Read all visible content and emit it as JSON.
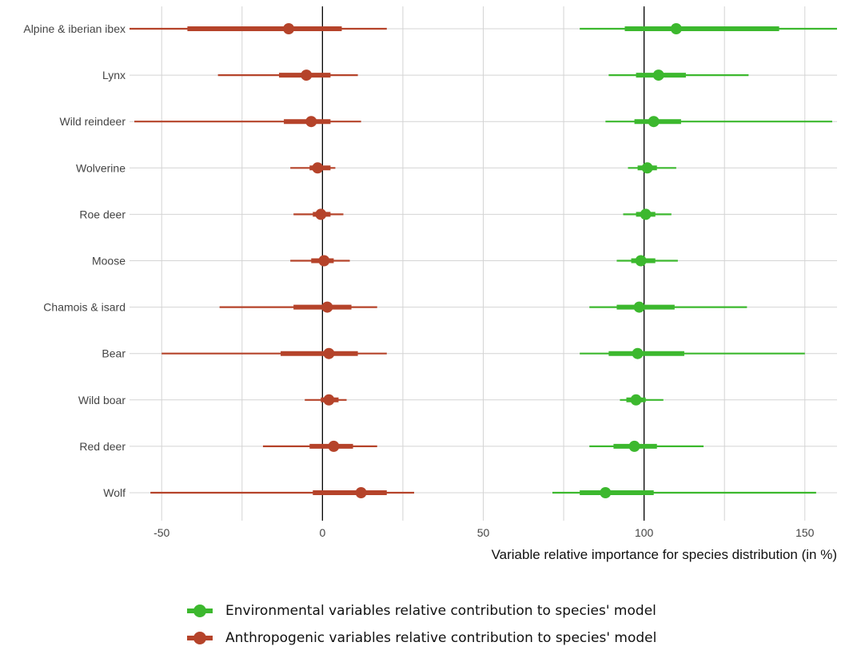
{
  "colors": {
    "environmental": "#3cb82e",
    "anthropogenic": "#b5432a",
    "grid": "#d4d4d4",
    "zero_line": "#000000",
    "reference_line": "#000000"
  },
  "chart_data": {
    "type": "forest-interval",
    "xlabel": "Variable relative importance for species distribution (in %)",
    "xlim": [
      -60,
      160
    ],
    "x_ticks": [
      -50,
      0,
      50,
      100,
      150
    ],
    "x_tick_labels": [
      "-50",
      "0",
      "50",
      "100",
      "150"
    ],
    "x_minor_gridlines": [
      -25,
      25,
      75,
      125
    ],
    "vertical_reference_lines": [
      0,
      100
    ],
    "grid": true,
    "legend_placement": "bottom",
    "categories": [
      "Alpine & iberian ibex",
      "Lynx",
      "Wild reindeer",
      "Wolverine",
      "Roe deer",
      "Moose",
      "Chamois & isard",
      "Bear",
      "Wild boar",
      "Red deer",
      "Wolf"
    ],
    "series": [
      {
        "name": "Environmental variables relative contribution to species' model",
        "color_key": "environmental",
        "estimate": [
          110,
          104.5,
          103,
          101,
          100.5,
          99,
          98.5,
          98,
          97.5,
          97,
          88
        ],
        "inner_interval": [
          [
            94,
            142
          ],
          [
            97.5,
            113
          ],
          [
            97,
            111.5
          ],
          [
            98,
            104
          ],
          [
            97.5,
            103.5
          ],
          [
            96,
            103.5
          ],
          [
            91.5,
            109.5
          ],
          [
            89,
            112.5
          ],
          [
            94.5,
            100.5
          ],
          [
            90.5,
            104
          ],
          [
            80,
            103
          ]
        ],
        "outer_interval": [
          [
            80,
            160
          ],
          [
            89,
            132.5
          ],
          [
            88,
            158.5
          ],
          [
            95,
            110
          ],
          [
            93.5,
            108.5
          ],
          [
            91.5,
            110.5
          ],
          [
            83,
            132
          ],
          [
            80,
            150
          ],
          [
            92.5,
            106
          ],
          [
            83,
            118.5
          ],
          [
            71.5,
            153.5
          ]
        ]
      },
      {
        "name": "Anthropogenic variables relative contribution to species' model",
        "color_key": "anthropogenic",
        "estimate": [
          -10.5,
          -5,
          -3.5,
          -1.5,
          -0.5,
          0.5,
          1.5,
          2,
          2,
          3.5,
          12
        ],
        "inner_interval": [
          [
            -42,
            6
          ],
          [
            -13.5,
            2.5
          ],
          [
            -12,
            2.5
          ],
          [
            -4,
            2.5
          ],
          [
            -3,
            2.5
          ],
          [
            -3.5,
            3.5
          ],
          [
            -9,
            9
          ],
          [
            -13,
            11
          ],
          [
            -0.5,
            5
          ],
          [
            -4,
            9.5
          ],
          [
            -3,
            20
          ]
        ],
        "outer_interval": [
          [
            -60,
            20
          ],
          [
            -32.5,
            11
          ],
          [
            -58.5,
            12
          ],
          [
            -10,
            4
          ],
          [
            -9,
            6.5
          ],
          [
            -10,
            8.5
          ],
          [
            -32,
            17
          ],
          [
            -50,
            20
          ],
          [
            -5.5,
            7.5
          ],
          [
            -18.5,
            17
          ],
          [
            -53.5,
            28.5
          ]
        ]
      }
    ]
  },
  "legend": {
    "items": [
      {
        "label": "Environmental variables relative contribution to species' model",
        "color_key": "environmental"
      },
      {
        "label": "Anthropogenic variables relative contribution to species' model",
        "color_key": "anthropogenic"
      }
    ]
  }
}
